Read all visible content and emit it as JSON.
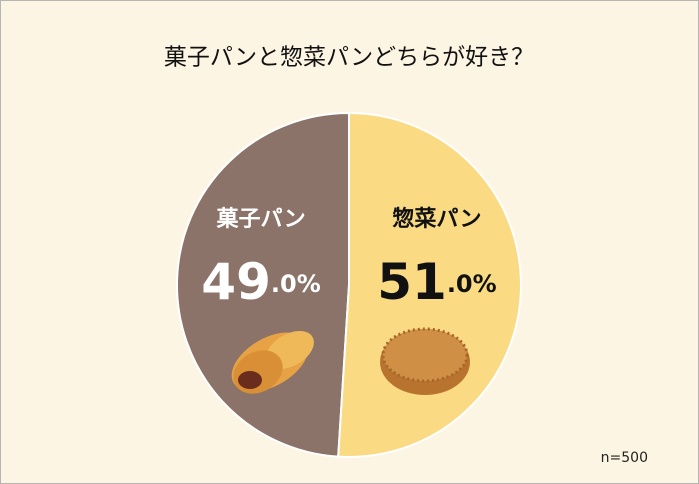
{
  "chart_data": {
    "type": "pie",
    "title": "菓子パンと惣菜パンどちらが好き？",
    "categories": [
      "菓子パン",
      "惣菜パン"
    ],
    "values": [
      49.0,
      51.0
    ],
    "value_labels": [
      "49.0%",
      "51.0%"
    ],
    "colors": [
      "#8b7369",
      "#fadb84"
    ],
    "label_colors": [
      "#ffffff",
      "#111111"
    ],
    "direction": "counterclockwise",
    "start": "top",
    "note": "n=500"
  }
}
